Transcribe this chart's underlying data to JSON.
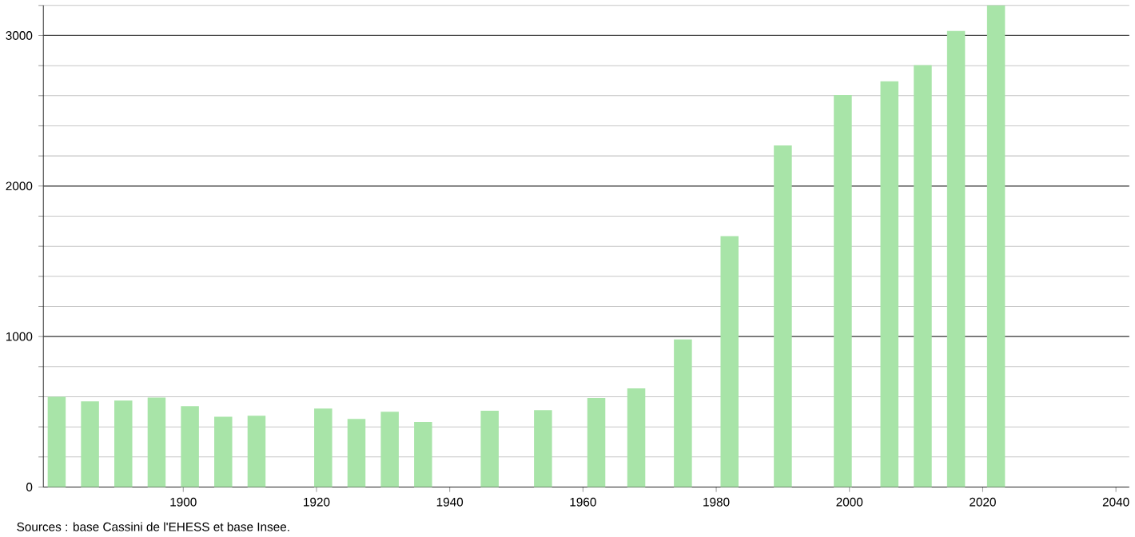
{
  "chart_data": {
    "type": "bar",
    "x": [
      1881,
      1886,
      1891,
      1896,
      1901,
      1906,
      1911,
      1921,
      1926,
      1931,
      1936,
      1946,
      1954,
      1962,
      1968,
      1975,
      1982,
      1990,
      1999,
      2006,
      2011,
      2016,
      2022
    ],
    "values": [
      600,
      570,
      575,
      595,
      537,
      467,
      474,
      522,
      452,
      500,
      433,
      507,
      511,
      592,
      656,
      981,
      1667,
      2270,
      2604,
      2696,
      2803,
      3030,
      3200
    ],
    "color": "#a8e4a8",
    "xlim": [
      1879,
      2042
    ],
    "xticks": [
      1900,
      1920,
      1940,
      1960,
      1980,
      2000,
      2020,
      2040
    ],
    "ylim": [
      0,
      3200
    ],
    "yticks": [
      0,
      {
        "value": 200,
        "label": null
      },
      {
        "value": 400,
        "label": null
      },
      {
        "value": 600,
        "label": null
      },
      {
        "value": 800,
        "label": null
      },
      1000,
      {
        "value": 1200,
        "label": null
      },
      {
        "value": 1400,
        "label": null
      },
      {
        "value": 1600,
        "label": null
      },
      {
        "value": 1800,
        "label": null
      },
      2000,
      {
        "value": 2200,
        "label": null
      },
      {
        "value": 2400,
        "label": null
      },
      {
        "value": 2600,
        "label": null
      },
      {
        "value": 2800,
        "label": null
      },
      3000,
      {
        "value": 3200,
        "label": null
      }
    ],
    "grid": "y",
    "annotations": [
      "Sources : base Cassini de l'EHESS et base Insee."
    ]
  }
}
